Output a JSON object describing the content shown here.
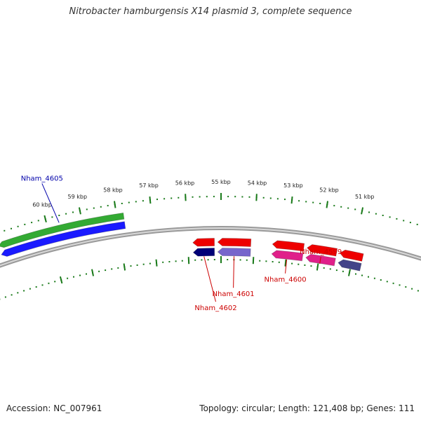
{
  "title": "Nitrobacter hamburgensis X14 plasmid 3, complete sequence",
  "footer": {
    "accession": "Accession: NC_007961",
    "summary": "Topology: circular; Length: 121,408 bp; Genes: 111"
  },
  "colors": {
    "backbone": "#8a8a8a",
    "tick": "#1a7a1a",
    "label_blue": "#0000aa",
    "label_red": "#cc0000"
  },
  "ticks": [
    {
      "kbp": 51,
      "label": "51 kbp"
    },
    {
      "kbp": 52,
      "label": "52 kbp"
    },
    {
      "kbp": 53,
      "label": "53 kbp"
    },
    {
      "kbp": 54,
      "label": "54 kbp"
    },
    {
      "kbp": 55,
      "label": "55 kbp"
    },
    {
      "kbp": 56,
      "label": "56 kbp"
    },
    {
      "kbp": 57,
      "label": "57 kbp"
    },
    {
      "kbp": 58,
      "label": "58 kbp"
    },
    {
      "kbp": 59,
      "label": "59 kbp"
    },
    {
      "kbp": 60,
      "label": "60 kbp"
    }
  ],
  "genes": [
    {
      "name": "Nham_4605",
      "strand": "-",
      "start_kbp": 57.8,
      "end_kbp": 61.5,
      "color": "#1a1aff",
      "cog_color": "#33aa33",
      "label_color": "#0000aa"
    },
    {
      "name": "Nham_4602",
      "strand": "-",
      "start_kbp": 55.85,
      "end_kbp": 55.2,
      "color": "#ee0000",
      "cog_color": "#000077",
      "label_color": "#cc0000"
    },
    {
      "name": "Nham_4601",
      "strand": "-",
      "start_kbp": 55.1,
      "end_kbp": 54.1,
      "color": "#ee0000",
      "cog_color": "#7766cc",
      "label_color": "#cc0000"
    },
    {
      "name": "Nham_4600",
      "strand": "-",
      "start_kbp": 53.45,
      "end_kbp": 52.5,
      "color": "#ee0000",
      "cog_color": "#e0208a",
      "label_color": "#cc0000"
    },
    {
      "name": "Nham_4599",
      "strand": "-",
      "start_kbp": 52.4,
      "end_kbp": 51.5,
      "color": "#ee0000",
      "cog_color": "#e0208a",
      "label_color": "#cc0000"
    },
    {
      "name": "",
      "strand": "-",
      "start_kbp": 51.4,
      "end_kbp": 50.7,
      "color": "#ee0000",
      "cog_color": "#444488",
      "label_color": "#cc0000"
    }
  ],
  "gene_labels": [
    {
      "gene": "Nham_4605",
      "text": "Nham_4605"
    },
    {
      "gene": "Nham_4602",
      "text": "Nham_4602"
    },
    {
      "gene": "Nham_4601",
      "text": "Nham_4601"
    },
    {
      "gene": "Nham_4600",
      "text": "Nham_4600"
    },
    {
      "gene": "Nham_4599",
      "text": "Nham_4599"
    }
  ]
}
